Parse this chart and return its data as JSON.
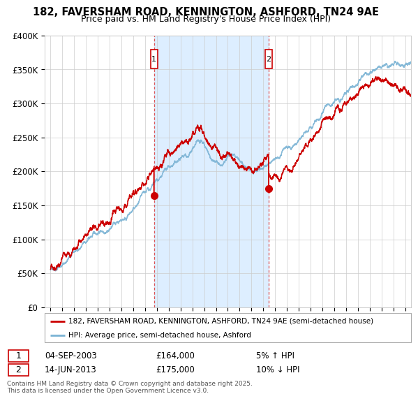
{
  "title": "182, FAVERSHAM ROAD, KENNINGTON, ASHFORD, TN24 9AE",
  "subtitle": "Price paid vs. HM Land Registry's House Price Index (HPI)",
  "ylabel_ticks": [
    "£0",
    "£50K",
    "£100K",
    "£150K",
    "£200K",
    "£250K",
    "£300K",
    "£350K",
    "£400K"
  ],
  "ylim": [
    0,
    400000
  ],
  "xlim_start": 1994.5,
  "xlim_end": 2025.5,
  "hpi_color": "#7ab3d4",
  "price_color": "#cc0000",
  "vline_color": "#dd4444",
  "shade_color": "#ddeeff",
  "marker1_date": 2003.75,
  "marker2_date": 2013.45,
  "marker1_price": 164000,
  "marker2_price": 175000,
  "legend_items": [
    {
      "label": "182, FAVERSHAM ROAD, KENNINGTON, ASHFORD, TN24 9AE (semi-detached house)",
      "color": "#cc0000"
    },
    {
      "label": "HPI: Average price, semi-detached house, Ashford",
      "color": "#7ab3d4"
    }
  ],
  "table_rows": [
    {
      "num": "1",
      "date": "04-SEP-2003",
      "price": "£164,000",
      "hpi": "5% ↑ HPI"
    },
    {
      "num": "2",
      "date": "14-JUN-2013",
      "price": "£175,000",
      "hpi": "10% ↓ HPI"
    }
  ],
  "footnote": "Contains HM Land Registry data © Crown copyright and database right 2025.\nThis data is licensed under the Open Government Licence v3.0.",
  "background_color": "#ffffff",
  "grid_color": "#cccccc"
}
